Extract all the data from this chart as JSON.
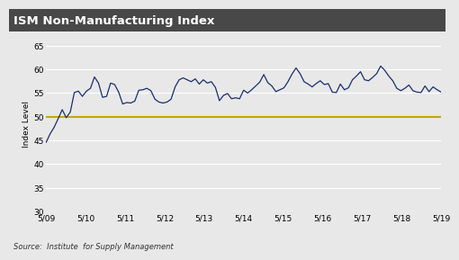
{
  "title": "ISM Non-Manufacturing Index",
  "ylabel": "Index Level",
  "source": "Source:  Institute  for Supply Management",
  "title_bg_color": "#484848",
  "title_text_color": "#ffffff",
  "line_color": "#1a2e6e",
  "reference_line_color": "#c8a800",
  "reference_line_value": 50,
  "ylim": [
    30,
    67
  ],
  "yticks": [
    30,
    35,
    40,
    45,
    50,
    55,
    60,
    65
  ],
  "x_tick_labels": [
    "5/09",
    "5/10",
    "5/11",
    "5/12",
    "5/13",
    "5/14",
    "5/15",
    "5/16",
    "5/17",
    "5/18",
    "5/19"
  ],
  "background_color": "#e8e8e8",
  "plot_bg_color": "#e8e8e8",
  "grid_color": "#ffffff",
  "values": [
    44.6,
    46.4,
    47.8,
    49.6,
    51.5,
    49.8,
    51.0,
    55.1,
    55.4,
    54.3,
    55.4,
    56.0,
    58.4,
    57.1,
    54.1,
    54.3,
    57.1,
    56.8,
    55.2,
    52.7,
    53.0,
    52.9,
    53.3,
    55.6,
    55.7,
    56.0,
    55.5,
    53.7,
    53.1,
    52.9,
    53.1,
    53.7,
    56.3,
    57.8,
    58.2,
    57.8,
    57.4,
    58.0,
    56.9,
    57.8,
    57.1,
    57.4,
    56.2,
    53.4,
    54.5,
    54.9,
    53.8,
    54.0,
    53.8,
    55.6,
    55.0,
    55.7,
    56.5,
    57.3,
    58.9,
    57.2,
    56.5,
    55.3,
    55.7,
    56.1,
    57.4,
    59.0,
    60.3,
    59.1,
    57.4,
    56.9,
    56.3,
    57.0,
    57.6,
    56.8,
    57.0,
    55.2,
    55.1,
    56.9,
    55.7,
    56.1,
    57.8,
    58.6,
    59.5,
    57.8,
    57.6,
    58.3,
    59.1,
    60.7,
    59.8,
    58.6,
    57.6,
    56.0,
    55.5,
    56.0,
    56.7,
    55.5,
    55.2,
    55.1,
    56.5,
    55.3,
    56.3,
    55.7,
    55.2
  ]
}
